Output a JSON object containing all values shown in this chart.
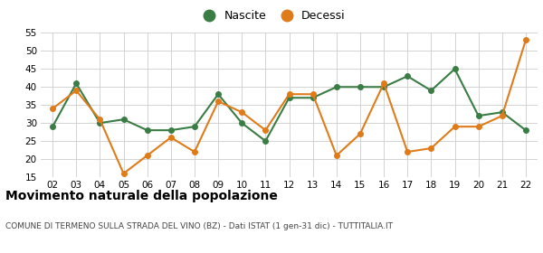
{
  "x_labels": [
    "02",
    "03",
    "04",
    "05",
    "06",
    "07",
    "08",
    "09",
    "10",
    "11",
    "12",
    "13",
    "14",
    "15",
    "16",
    "17",
    "18",
    "19",
    "20",
    "21",
    "22"
  ],
  "nascite": [
    29,
    41,
    30,
    31,
    28,
    28,
    29,
    38,
    30,
    25,
    37,
    37,
    40,
    40,
    40,
    43,
    39,
    45,
    32,
    33,
    28
  ],
  "decessi": [
    34,
    39,
    31,
    16,
    21,
    26,
    22,
    36,
    33,
    28,
    38,
    38,
    21,
    27,
    41,
    22,
    23,
    29,
    29,
    32,
    53
  ],
  "nascite_color": "#3a7d44",
  "decessi_color": "#e07b1a",
  "title": "Movimento naturale della popolazione",
  "subtitle": "COMUNE DI TERMENO SULLA STRADA DEL VINO (BZ) - Dati ISTAT (1 gen-31 dic) - TUTTITALIA.IT",
  "legend_nascite": "Nascite",
  "legend_decessi": "Decessi",
  "ylim": [
    15,
    55
  ],
  "yticks": [
    15,
    20,
    25,
    30,
    35,
    40,
    45,
    50,
    55
  ],
  "bg_color": "#ffffff",
  "grid_color": "#cccccc",
  "marker_size": 4,
  "line_width": 1.5
}
